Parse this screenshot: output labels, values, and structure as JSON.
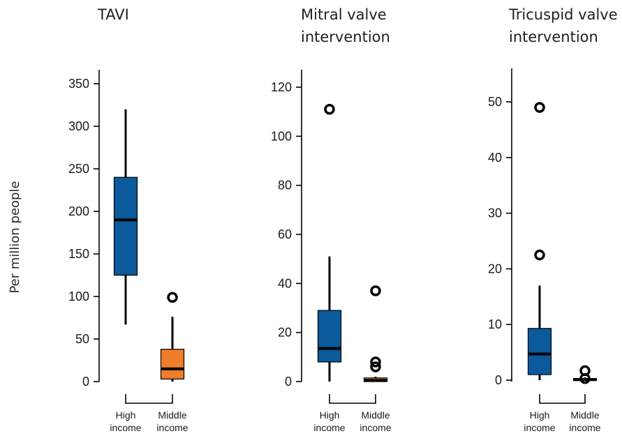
{
  "colors": {
    "high_income": "#0a5a9c",
    "middle_income": "#ef7d2a",
    "stroke": "#000000"
  },
  "ylabel": "Per million people",
  "chart_data": [
    {
      "type": "box",
      "title": "TAVI",
      "ylim": [
        0,
        350
      ],
      "yticks": [
        "0",
        "50",
        "100",
        "150",
        "200",
        "250",
        "300",
        "350"
      ],
      "series": [
        {
          "category": "High income",
          "whisker_low": 67,
          "q1": 125,
          "median": 190,
          "q3": 240,
          "whisker_high": 320,
          "outliers": []
        },
        {
          "category": "Middle income",
          "whisker_low": 0,
          "q1": 3,
          "median": 15,
          "q3": 38,
          "whisker_high": 76,
          "outliers": [
            99
          ]
        }
      ],
      "categories": [
        "High income",
        "Middle income"
      ],
      "category_labels": [
        [
          "High",
          "income"
        ],
        [
          "Middle",
          "income"
        ]
      ]
    },
    {
      "type": "box",
      "title": "Mitral valve intervention",
      "title_lines": [
        "Mitral valve",
        "intervention"
      ],
      "ylim": [
        0,
        120
      ],
      "yticks": [
        "0",
        "20",
        "40",
        "60",
        "80",
        "100",
        "120"
      ],
      "series": [
        {
          "category": "High income",
          "whisker_low": 0,
          "q1": 8,
          "median": 13.5,
          "q3": 29,
          "whisker_high": 51,
          "outliers": [
            111
          ]
        },
        {
          "category": "Middle income",
          "whisker_low": 0,
          "q1": 0,
          "median": 0.5,
          "q3": 1.5,
          "whisker_high": 2,
          "outliers": [
            6,
            8,
            37
          ]
        }
      ],
      "categories": [
        "High income",
        "Middle income"
      ],
      "category_labels": [
        [
          "High",
          "income"
        ],
        [
          "Middle",
          "income"
        ]
      ]
    },
    {
      "type": "box",
      "title": "Tricuspid valve intervention",
      "title_lines": [
        "Tricuspid valve",
        "intervention"
      ],
      "ylim": [
        0,
        50
      ],
      "yticks": [
        "0",
        "10",
        "20",
        "30",
        "40",
        "50"
      ],
      "series": [
        {
          "category": "High income",
          "whisker_low": 0,
          "q1": 1,
          "median": 4.7,
          "q3": 9.3,
          "whisker_high": 17,
          "outliers": [
            22.5,
            49
          ]
        },
        {
          "category": "Middle income",
          "whisker_low": 0,
          "q1": 0,
          "median": 0.1,
          "q3": 0.3,
          "whisker_high": 0.5,
          "outliers": [
            0.3,
            1.7
          ]
        }
      ],
      "categories": [
        "High income",
        "Middle income"
      ],
      "category_labels": [
        [
          "High",
          "income"
        ],
        [
          "Middle",
          "income"
        ]
      ]
    }
  ]
}
